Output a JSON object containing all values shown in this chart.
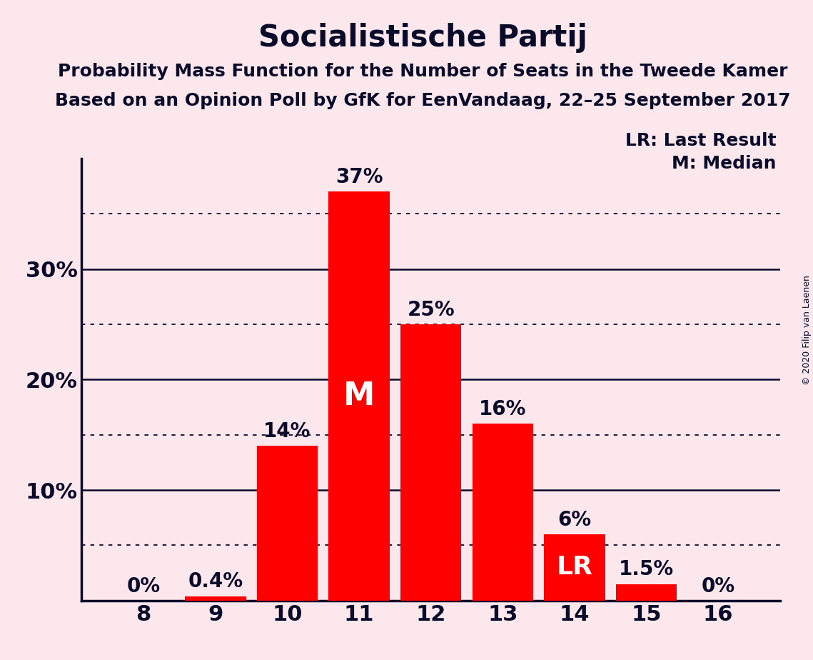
{
  "title": "Socialistische Partij",
  "subtitle1": "Probability Mass Function for the Number of Seats in the Tweede Kamer",
  "subtitle2": "Based on an Opinion Poll by GfK for EenVandaag, 22–25 September 2017",
  "copyright": "© 2020 Filip van Laenen",
  "categories": [
    8,
    9,
    10,
    11,
    12,
    13,
    14,
    15,
    16
  ],
  "values": [
    0.0,
    0.4,
    14.0,
    37.0,
    25.0,
    16.0,
    6.0,
    1.5,
    0.0
  ],
  "bar_color": "#ff0000",
  "background_color": "#fce8ec",
  "label_color_outside": "#0a0a2a",
  "label_color_inside": "#ffffff",
  "median_bar": 11,
  "lr_bar": 14,
  "yticks": [
    10,
    20,
    30
  ],
  "ygrid_solid": [
    10,
    20,
    30
  ],
  "ygrid_dotted": [
    5,
    15,
    25,
    35
  ],
  "ylim": [
    0,
    40
  ],
  "bar_labels": [
    "0%",
    "0.4%",
    "14%",
    "37%",
    "25%",
    "16%",
    "6%",
    "1.5%",
    "0%"
  ],
  "legend_line1": "LR: Last Result",
  "legend_line2": "M: Median",
  "title_fontsize": 30,
  "subtitle_fontsize": 18,
  "axis_tick_fontsize": 22,
  "bar_label_fontsize": 20,
  "inside_label_fontsize_M": 32,
  "inside_label_fontsize_LR": 26,
  "legend_fontsize": 18,
  "copyright_fontsize": 9
}
